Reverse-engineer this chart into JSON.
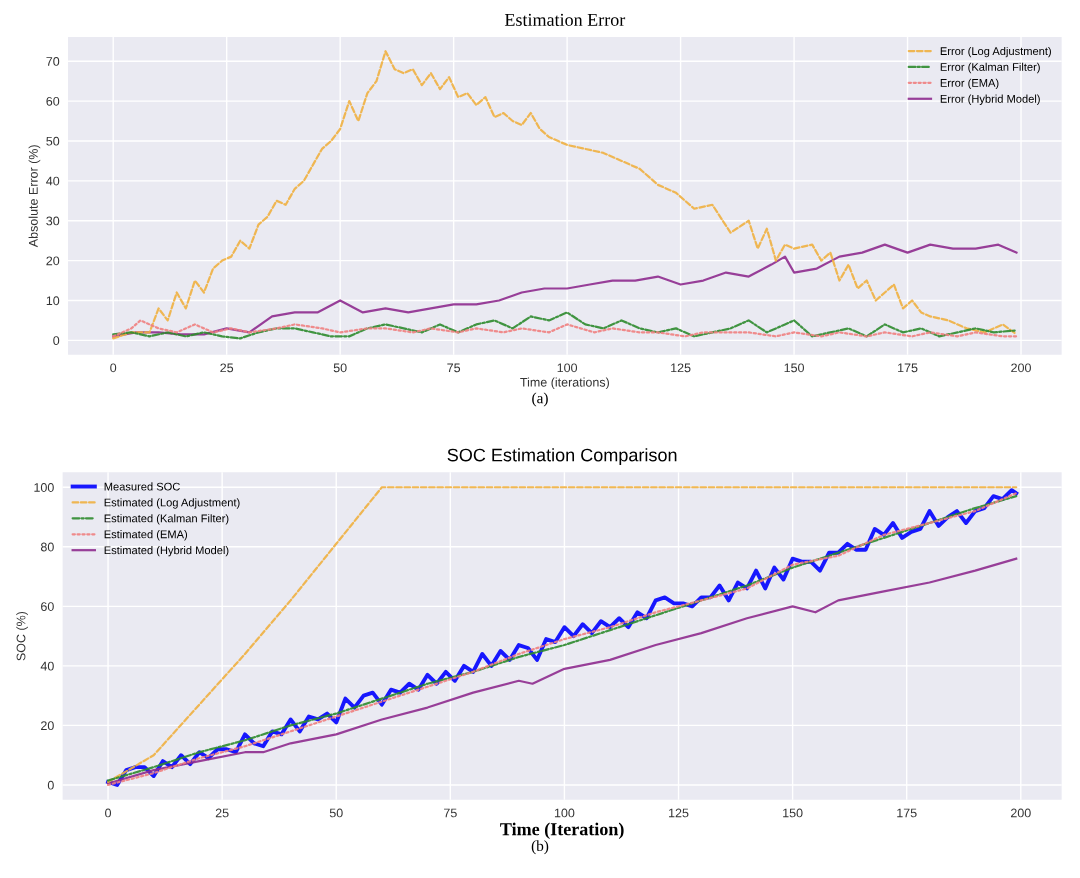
{
  "chart_data": [
    {
      "type": "line",
      "title": "Estimation Error",
      "xlabel": "Time (iterations)",
      "ylabel": "Absolute Error (%)",
      "xlim": [
        -9.95,
        208.95
      ],
      "ylim": [
        -3.6,
        76.1
      ],
      "xticks": [
        0,
        25,
        50,
        75,
        100,
        125,
        150,
        175,
        200
      ],
      "yticks": [
        0,
        10,
        20,
        30,
        40,
        50,
        60,
        70
      ],
      "grid": true,
      "legend": "top right",
      "annotations": [
        "(a)"
      ],
      "series": [
        {
          "name": "Error (Log Adjustment)",
          "color": "#f0b040",
          "line_style": "dashed",
          "x": [
            0,
            4,
            8,
            10,
            12,
            14,
            16,
            18,
            20,
            22,
            24,
            26,
            28,
            30,
            32,
            34,
            36,
            38,
            40,
            42,
            44,
            46,
            48,
            50,
            52,
            54,
            56,
            58,
            60,
            62,
            64,
            66,
            68,
            70,
            72,
            74,
            76,
            78,
            80,
            82,
            84,
            86,
            88,
            90,
            92,
            94,
            96,
            100,
            104,
            108,
            112,
            116,
            120,
            124,
            128,
            132,
            136,
            140,
            142,
            144,
            146,
            148,
            150,
            154,
            156,
            158,
            160,
            162,
            164,
            166,
            168,
            170,
            172,
            174,
            176,
            178,
            180,
            184,
            188,
            192,
            196,
            199
          ],
          "values": [
            0.5,
            2,
            2,
            8,
            5,
            12,
            8,
            15,
            12,
            18,
            20,
            21,
            25,
            23,
            29,
            31,
            35,
            34,
            38,
            40,
            44,
            48,
            50,
            53,
            60,
            55,
            62,
            65,
            72.5,
            68,
            67,
            68,
            64,
            67,
            63,
            66,
            61,
            62,
            59,
            61,
            56,
            57,
            55,
            54,
            57,
            53,
            51,
            49,
            48,
            47,
            45,
            43,
            39,
            37,
            33,
            34,
            27,
            30,
            23,
            28,
            20,
            24,
            23,
            24,
            20,
            22,
            15,
            19,
            13,
            15,
            10,
            12,
            14,
            8,
            10,
            7,
            6,
            5,
            3,
            2,
            4,
            1.5
          ]
        },
        {
          "name": "Error (Kalman Filter)",
          "color": "#2e8b2e",
          "line_style": "dashdot",
          "x": [
            0,
            4,
            8,
            12,
            16,
            20,
            24,
            28,
            32,
            36,
            40,
            44,
            48,
            52,
            56,
            60,
            64,
            68,
            72,
            76,
            80,
            84,
            88,
            92,
            96,
            100,
            104,
            108,
            112,
            116,
            120,
            124,
            128,
            132,
            136,
            140,
            144,
            148,
            150,
            154,
            158,
            162,
            166,
            170,
            174,
            178,
            182,
            186,
            190,
            194,
            199
          ],
          "values": [
            1.5,
            2,
            1,
            2,
            1,
            2,
            1,
            0.5,
            2,
            3,
            3,
            2,
            1,
            1,
            3,
            4,
            3,
            2,
            4,
            2,
            4,
            5,
            3,
            6,
            5,
            7,
            4,
            3,
            5,
            3,
            2,
            3,
            1,
            2,
            3,
            5,
            2,
            4,
            5,
            1,
            2,
            3,
            1,
            4,
            2,
            3,
            1,
            2,
            3,
            2,
            2.5
          ]
        },
        {
          "name": "Error (EMA)",
          "color": "#f08080",
          "line_style": "dotted",
          "x": [
            0,
            4,
            6,
            10,
            14,
            18,
            22,
            26,
            30,
            36,
            40,
            46,
            50,
            56,
            60,
            66,
            70,
            76,
            80,
            86,
            90,
            96,
            100,
            106,
            110,
            116,
            120,
            126,
            130,
            136,
            140,
            146,
            150,
            156,
            160,
            166,
            170,
            176,
            180,
            186,
            190,
            196,
            199
          ],
          "values": [
            1,
            3,
            5,
            3,
            2,
            4,
            2,
            3,
            2,
            3,
            4,
            3,
            2,
            3,
            3,
            2,
            3,
            2,
            3,
            2,
            3,
            2,
            4,
            2,
            3,
            2,
            2,
            1,
            2,
            2,
            2,
            1,
            2,
            1,
            2,
            1,
            2,
            1,
            2,
            1,
            2,
            1,
            1
          ]
        },
        {
          "name": "Error (Hybrid Model)",
          "color": "#8e2b8e",
          "line_style": "solid",
          "x": [
            0,
            5,
            10,
            15,
            20,
            25,
            30,
            35,
            40,
            45,
            50,
            55,
            60,
            65,
            70,
            75,
            80,
            85,
            90,
            95,
            100,
            105,
            110,
            115,
            120,
            125,
            130,
            135,
            140,
            145,
            148,
            150,
            155,
            160,
            165,
            170,
            175,
            180,
            185,
            190,
            195,
            199
          ],
          "values": [
            1,
            2,
            2,
            1.5,
            1.5,
            3,
            2,
            6,
            7,
            7,
            10,
            7,
            8,
            7,
            8,
            9,
            9,
            10,
            12,
            13,
            13,
            14,
            15,
            15,
            16,
            14,
            15,
            17,
            16,
            19,
            21,
            17,
            18,
            21,
            22,
            24,
            22,
            24,
            23,
            23,
            24,
            22
          ]
        }
      ]
    },
    {
      "type": "line",
      "title": "SOC Estimation Comparison",
      "xlabel": "Time (Iteration)",
      "ylabel": "SOC (%)",
      "xlim": [
        -9.95,
        208.95
      ],
      "ylim": [
        -5,
        105
      ],
      "xticks": [
        0,
        25,
        50,
        75,
        100,
        125,
        150,
        175,
        200
      ],
      "yticks": [
        0,
        20,
        40,
        60,
        80,
        100
      ],
      "grid": true,
      "legend": "top left",
      "annotations": [
        "(b)"
      ],
      "series": [
        {
          "name": "Measured SOC",
          "color": "#0000ff",
          "line_style": "solid",
          "x": [
            0,
            2,
            4,
            6,
            8,
            10,
            12,
            14,
            16,
            18,
            20,
            22,
            24,
            26,
            28,
            30,
            32,
            34,
            36,
            38,
            40,
            42,
            44,
            46,
            48,
            50,
            52,
            54,
            56,
            58,
            60,
            62,
            64,
            66,
            68,
            70,
            72,
            74,
            76,
            78,
            80,
            82,
            84,
            86,
            88,
            90,
            92,
            94,
            96,
            98,
            100,
            102,
            104,
            106,
            108,
            110,
            112,
            114,
            116,
            118,
            120,
            122,
            124,
            126,
            128,
            130,
            132,
            134,
            136,
            138,
            140,
            142,
            144,
            146,
            148,
            150,
            152,
            154,
            156,
            158,
            160,
            162,
            164,
            166,
            168,
            170,
            172,
            174,
            176,
            178,
            180,
            182,
            184,
            186,
            188,
            190,
            192,
            194,
            196,
            198,
            199
          ],
          "values": [
            1,
            0,
            5,
            6,
            6,
            3,
            8,
            6,
            10,
            7,
            11,
            9,
            12,
            12,
            11,
            17,
            14,
            13,
            18,
            17,
            22,
            18,
            23,
            22,
            24,
            21,
            29,
            26,
            30,
            31,
            27,
            32,
            31,
            34,
            32,
            37,
            34,
            38,
            35,
            40,
            38,
            44,
            40,
            45,
            42,
            47,
            46,
            42,
            49,
            48,
            53,
            50,
            54,
            51,
            55,
            53,
            56,
            53,
            58,
            56,
            62,
            63,
            61,
            61,
            60,
            63,
            63,
            67,
            62,
            68,
            66,
            72,
            66,
            73,
            69,
            76,
            75,
            75,
            72,
            78,
            78,
            81,
            79,
            79,
            86,
            84,
            88,
            83,
            85,
            86,
            92,
            87,
            90,
            92,
            88,
            92,
            93,
            97,
            96,
            99,
            98
          ]
        },
        {
          "name": "Estimated (Log Adjustment)",
          "color": "#f0b040",
          "line_style": "dashed",
          "x": [
            0,
            10,
            20,
            30,
            40,
            50,
            60,
            100,
            150,
            199
          ],
          "values": [
            1,
            10,
            27,
            44,
            62,
            81,
            100,
            100,
            100,
            100
          ]
        },
        {
          "name": "Estimated (Kalman Filter)",
          "color": "#2e8b2e",
          "line_style": "dashdot",
          "x": [
            0,
            10,
            20,
            30,
            40,
            50,
            60,
            70,
            80,
            90,
            100,
            110,
            120,
            130,
            140,
            150,
            160,
            170,
            180,
            190,
            199
          ],
          "values": [
            1.5,
            6,
            11,
            15,
            20,
            24,
            29,
            34,
            38,
            43,
            47,
            52,
            57,
            62,
            67,
            73,
            78,
            83,
            88,
            93,
            97
          ]
        },
        {
          "name": "Estimated (EMA)",
          "color": "#f08080",
          "line_style": "dotted",
          "x": [
            0,
            10,
            20,
            30,
            40,
            50,
            60,
            70,
            80,
            90,
            100,
            110,
            120,
            130,
            140,
            150,
            160,
            170,
            180,
            190,
            199
          ],
          "values": [
            0,
            4,
            9,
            13,
            18,
            23,
            28,
            33,
            38,
            44,
            49,
            53,
            58,
            62,
            66,
            74,
            77,
            84,
            88,
            92,
            98
          ]
        },
        {
          "name": "Estimated (Hybrid Model)",
          "color": "#8e2b8e",
          "line_style": "solid",
          "x": [
            0,
            10,
            20,
            30,
            34,
            40,
            50,
            60,
            70,
            80,
            90,
            93,
            100,
            110,
            120,
            130,
            140,
            150,
            155,
            160,
            170,
            180,
            190,
            199
          ],
          "values": [
            0.5,
            5,
            8,
            11,
            11,
            14,
            17,
            22,
            26,
            31,
            35,
            34,
            39,
            42,
            47,
            51,
            56,
            60,
            58,
            62,
            65,
            68,
            72,
            76
          ]
        }
      ]
    }
  ]
}
